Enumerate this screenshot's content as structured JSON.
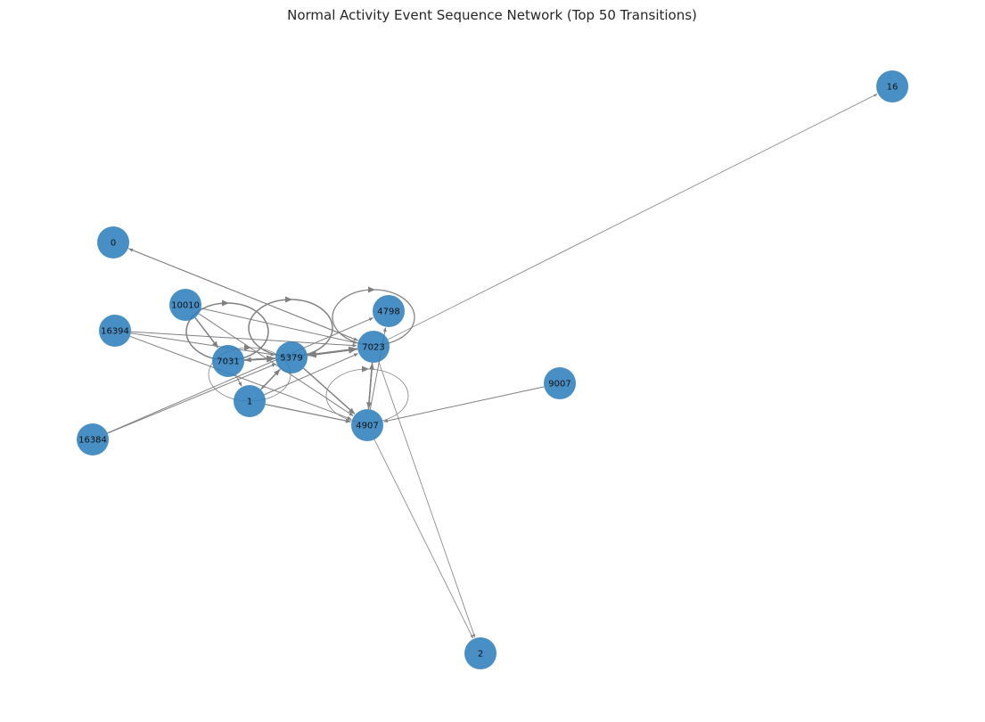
{
  "title": "Normal Activity Event Sequence Network (Top 50 Transitions)",
  "colors": {
    "node": "#2f7fbd",
    "edge": "#808080",
    "label": "#111111",
    "background": "#ffffff"
  },
  "nodes": [
    {
      "id": "16",
      "label": "16"
    },
    {
      "id": "0",
      "label": "0"
    },
    {
      "id": "10010",
      "label": "10010"
    },
    {
      "id": "4798",
      "label": "4798"
    },
    {
      "id": "16394",
      "label": "16394"
    },
    {
      "id": "7023",
      "label": "7023"
    },
    {
      "id": "7031",
      "label": "7031"
    },
    {
      "id": "5379",
      "label": "5379"
    },
    {
      "id": "9007",
      "label": "9007"
    },
    {
      "id": "1",
      "label": "1"
    },
    {
      "id": "4907",
      "label": "4907"
    },
    {
      "id": "16384",
      "label": "16384"
    },
    {
      "id": "2",
      "label": "2"
    }
  ],
  "edges": [
    {
      "source": "5379",
      "target": "7023",
      "weight": 3
    },
    {
      "source": "7023",
      "target": "5379",
      "weight": 3
    },
    {
      "source": "7031",
      "target": "5379",
      "weight": 3
    },
    {
      "source": "5379",
      "target": "7031",
      "weight": 2
    },
    {
      "source": "10010",
      "target": "7031",
      "weight": 2
    },
    {
      "source": "7031",
      "target": "1",
      "weight": 1
    },
    {
      "source": "1",
      "target": "5379",
      "weight": 2
    },
    {
      "source": "5379",
      "target": "1",
      "weight": 1
    },
    {
      "source": "5379",
      "target": "4907",
      "weight": 2
    },
    {
      "source": "4907",
      "target": "7023",
      "weight": 2
    },
    {
      "source": "7023",
      "target": "4907",
      "weight": 2
    },
    {
      "source": "4907",
      "target": "4798",
      "weight": 1
    },
    {
      "source": "1",
      "target": "4907",
      "weight": 1.5
    },
    {
      "source": "16394",
      "target": "7023",
      "weight": 1
    },
    {
      "source": "16394",
      "target": "5379",
      "weight": 1
    },
    {
      "source": "16394",
      "target": "4907",
      "weight": 1
    },
    {
      "source": "0",
      "target": "7023",
      "weight": 1
    },
    {
      "source": "7023",
      "target": "0",
      "weight": 1
    },
    {
      "source": "10010",
      "target": "7023",
      "weight": 1
    },
    {
      "source": "10010",
      "target": "4907",
      "weight": 1
    },
    {
      "source": "9007",
      "target": "4907",
      "weight": 1
    },
    {
      "source": "16384",
      "target": "4798",
      "weight": 1
    },
    {
      "source": "16384",
      "target": "5379",
      "weight": 1
    },
    {
      "source": "7023",
      "target": "16",
      "weight": 0.6
    },
    {
      "source": "7023",
      "target": "2",
      "weight": 0.6
    },
    {
      "source": "4907",
      "target": "2",
      "weight": 0.6
    },
    {
      "source": "1",
      "target": "7023",
      "weight": 1
    },
    {
      "source": "10010",
      "target": "10010",
      "weight": 2,
      "loop": true
    },
    {
      "source": "5379",
      "target": "5379",
      "weight": 2,
      "loop": true
    },
    {
      "source": "7023",
      "target": "7023",
      "weight": 1.5,
      "loop": true
    },
    {
      "source": "7031",
      "target": "7031",
      "weight": 0.6,
      "loop": true
    },
    {
      "source": "4907",
      "target": "4907",
      "weight": 0.6,
      "loop": true
    }
  ]
}
